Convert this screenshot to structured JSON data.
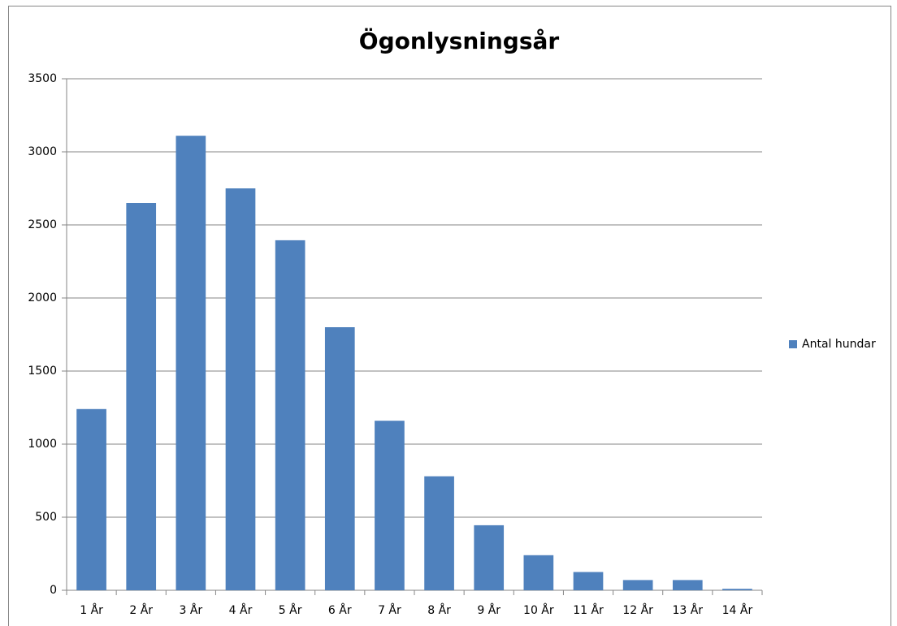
{
  "chart_data": {
    "type": "bar",
    "title": "Ögonlysningsår",
    "categories": [
      "1 År",
      "2 År",
      "3 År",
      "4 År",
      "5 År",
      "6 År",
      "7 År",
      "8 År",
      "9 År",
      "10 År",
      "11 År",
      "12 År",
      "13 År",
      "14 År"
    ],
    "series": [
      {
        "name": "Antal hundar",
        "color": "#4f81bd",
        "values": [
          1240,
          2650,
          3110,
          2750,
          2395,
          1800,
          1160,
          780,
          445,
          240,
          125,
          70,
          70,
          10
        ]
      }
    ],
    "ylim": [
      0,
      3500
    ],
    "yticks": [
      0,
      500,
      1000,
      1500,
      2000,
      2500,
      3000,
      3500
    ],
    "grid": true,
    "legend": "right"
  }
}
